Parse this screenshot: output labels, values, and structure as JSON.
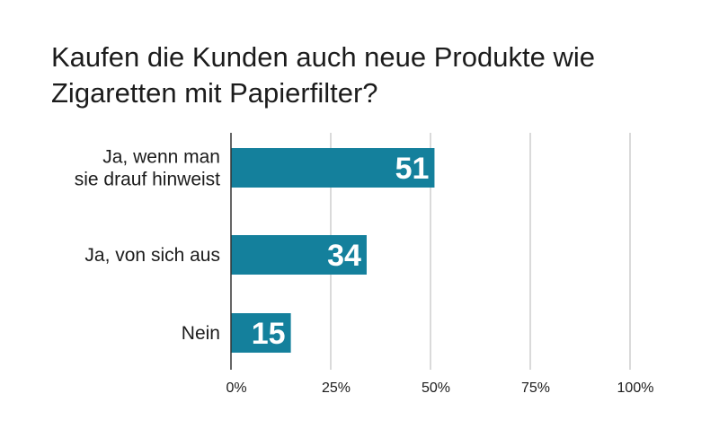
{
  "title_lines": [
    "Kaufen die Kunden auch neue Produkte wie",
    "Zigaretten mit Papierfilter?"
  ],
  "chart_data": {
    "type": "bar",
    "orientation": "horizontal",
    "title": "Kaufen die Kunden auch neue Produkte wie Zigaretten mit Papierfilter?",
    "categories": [
      [
        "Ja, wenn man",
        "sie drauf hinweist"
      ],
      [
        "Ja, von sich aus"
      ],
      [
        "Nein"
      ]
    ],
    "values": [
      51,
      34,
      15
    ],
    "value_labels": [
      "51",
      "34",
      "15"
    ],
    "xlim": [
      0,
      100
    ],
    "xticks": [
      0,
      25,
      50,
      75,
      100
    ],
    "xtick_labels": [
      "0%",
      "25%",
      "50%",
      "75%",
      "100%"
    ],
    "grid": true,
    "bar_color": "#14809c",
    "grid_color": "#b5b5b5",
    "axis_color": "#333333"
  }
}
